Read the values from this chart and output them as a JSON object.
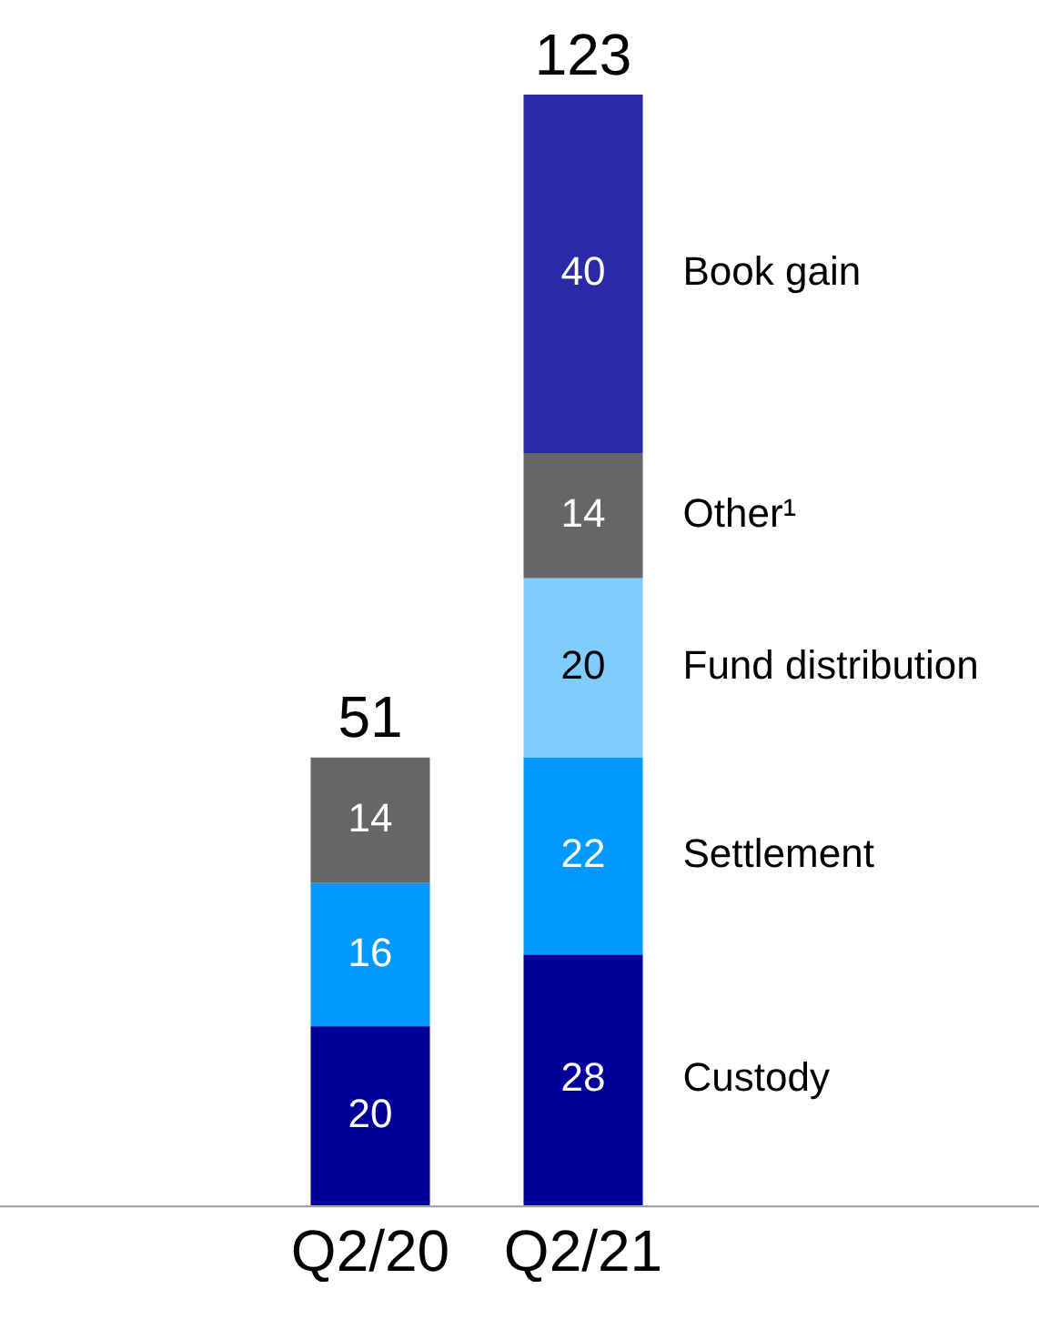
{
  "chart_data": {
    "type": "bar",
    "stacked": true,
    "categories": [
      "Q2/20",
      "Q2/21"
    ],
    "series": [
      {
        "name": "Custody",
        "color": "#000099",
        "values": [
          20,
          28
        ]
      },
      {
        "name": "Settlement",
        "color": "#0099ff",
        "values": [
          16,
          22
        ]
      },
      {
        "name": "Fund distribution",
        "color": "#80ccff",
        "values": [
          null,
          20
        ]
      },
      {
        "name": "Other¹",
        "color": "#666666",
        "values": [
          14,
          14
        ]
      },
      {
        "name": "Book gain",
        "color": "#2a2aa6",
        "values": [
          null,
          40
        ]
      }
    ],
    "data_labels": true,
    "totals": [
      "51",
      "123"
    ],
    "legend": false,
    "grid": false,
    "tick_labels": "x"
  }
}
